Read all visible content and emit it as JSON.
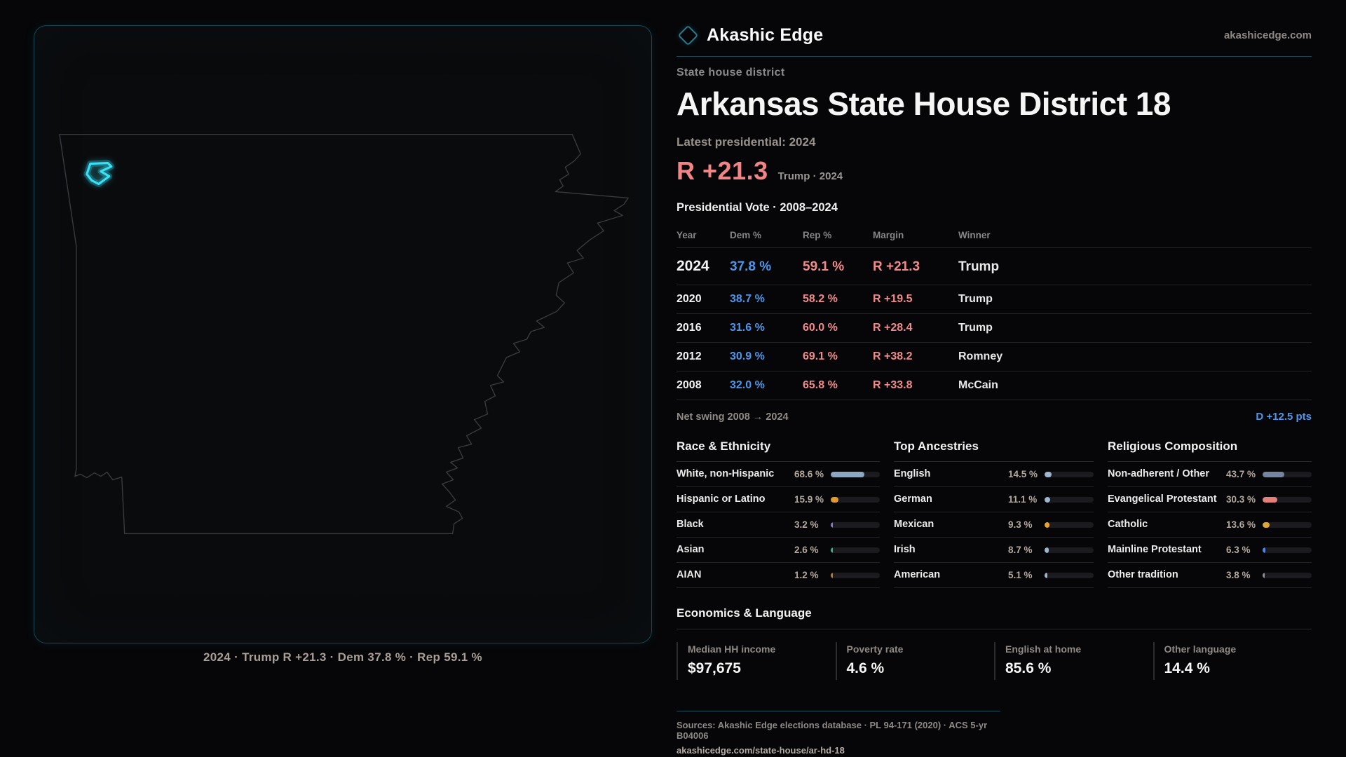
{
  "brand": {
    "name": "Akashic Edge",
    "site": "akashicedge.com"
  },
  "page": {
    "type_label": "State house district",
    "title": "Arkansas State House District 18",
    "latest_label": "Latest presidential: 2024",
    "margin_big": "R +21.3",
    "margin_context": "Trump · 2024",
    "table_title": "Presidential Vote · 2008–2024"
  },
  "map": {
    "caption": "2024 · Trump R +21.3 · Dem 37.8 % · Rep 59.1 %",
    "district_color": "#3ae1f2"
  },
  "vote_table": {
    "headers": [
      "Year",
      "Dem %",
      "Rep %",
      "Margin",
      "Winner"
    ],
    "rows": [
      {
        "year": "2024",
        "dem": "37.8 %",
        "rep": "59.1 %",
        "margin": "R +21.3",
        "winner": "Trump"
      },
      {
        "year": "2020",
        "dem": "38.7 %",
        "rep": "58.2 %",
        "margin": "R +19.5",
        "winner": "Trump"
      },
      {
        "year": "2016",
        "dem": "31.6 %",
        "rep": "60.0 %",
        "margin": "R +28.4",
        "winner": "Trump"
      },
      {
        "year": "2012",
        "dem": "30.9 %",
        "rep": "69.1 %",
        "margin": "R +38.2",
        "winner": "Romney"
      },
      {
        "year": "2008",
        "dem": "32.0 %",
        "rep": "65.8 %",
        "margin": "R +33.8",
        "winner": "McCain"
      }
    ],
    "net_swing_label": "Net swing 2008 → 2024",
    "net_swing_value": "D +12.5 pts",
    "dem_color": "#4e96ea",
    "rep_color": "#f18a8a"
  },
  "demographics": [
    {
      "title": "Race & Ethnicity",
      "rows": [
        {
          "label": "White, non-Hispanic",
          "value": "68.6 %",
          "pct": 68.6,
          "color": "#8ea6c2"
        },
        {
          "label": "Hispanic or Latino",
          "value": "15.9 %",
          "pct": 15.9,
          "color": "#e29a2e"
        },
        {
          "label": "Black",
          "value": "3.2 %",
          "pct": 3.2,
          "color": "#8b74dd"
        },
        {
          "label": "Asian",
          "value": "2.6 %",
          "pct": 2.6,
          "color": "#2fb586"
        },
        {
          "label": "AIAN",
          "value": "1.2 %",
          "pct": 1.2,
          "color": "#c17a2f"
        }
      ]
    },
    {
      "title": "Top Ancestries",
      "rows": [
        {
          "label": "English",
          "value": "14.5 %",
          "pct": 14.5,
          "color": "#9fb6d0"
        },
        {
          "label": "German",
          "value": "11.1 %",
          "pct": 11.1,
          "color": "#9fb6d0"
        },
        {
          "label": "Mexican",
          "value": "9.3 %",
          "pct": 9.3,
          "color": "#e8a42e"
        },
        {
          "label": "Irish",
          "value": "8.7 %",
          "pct": 8.7,
          "color": "#9fb6d0"
        },
        {
          "label": "American",
          "value": "5.1 %",
          "pct": 5.1,
          "color": "#9fb6d0"
        }
      ]
    },
    {
      "title": "Religious Composition",
      "rows": [
        {
          "label": "Non-adherent / Other",
          "value": "43.7 %",
          "pct": 43.7,
          "color": "#76859e"
        },
        {
          "label": "Evangelical Protestant",
          "value": "30.3 %",
          "pct": 30.3,
          "color": "#e4807c"
        },
        {
          "label": "Catholic",
          "value": "13.6 %",
          "pct": 13.6,
          "color": "#e0a635"
        },
        {
          "label": "Mainline Protestant",
          "value": "6.3 %",
          "pct": 6.3,
          "color": "#4b86e8"
        },
        {
          "label": "Other tradition",
          "value": "3.8 %",
          "pct": 3.8,
          "color": "#8d9298"
        }
      ]
    }
  ],
  "economics": {
    "title": "Economics & Language",
    "stats": [
      {
        "label": "Median HH income",
        "value": "$97,675"
      },
      {
        "label": "Poverty rate",
        "value": "4.6 %"
      },
      {
        "label": "English at home",
        "value": "85.6 %"
      },
      {
        "label": "Other language",
        "value": "14.4 %"
      }
    ]
  },
  "footer": {
    "sources": "Sources: Akashic Edge elections database · PL 94-171 (2020) · ACS 5-yr B04006",
    "permalink": "akashicedge.com/state-house/ar-hd-18"
  }
}
